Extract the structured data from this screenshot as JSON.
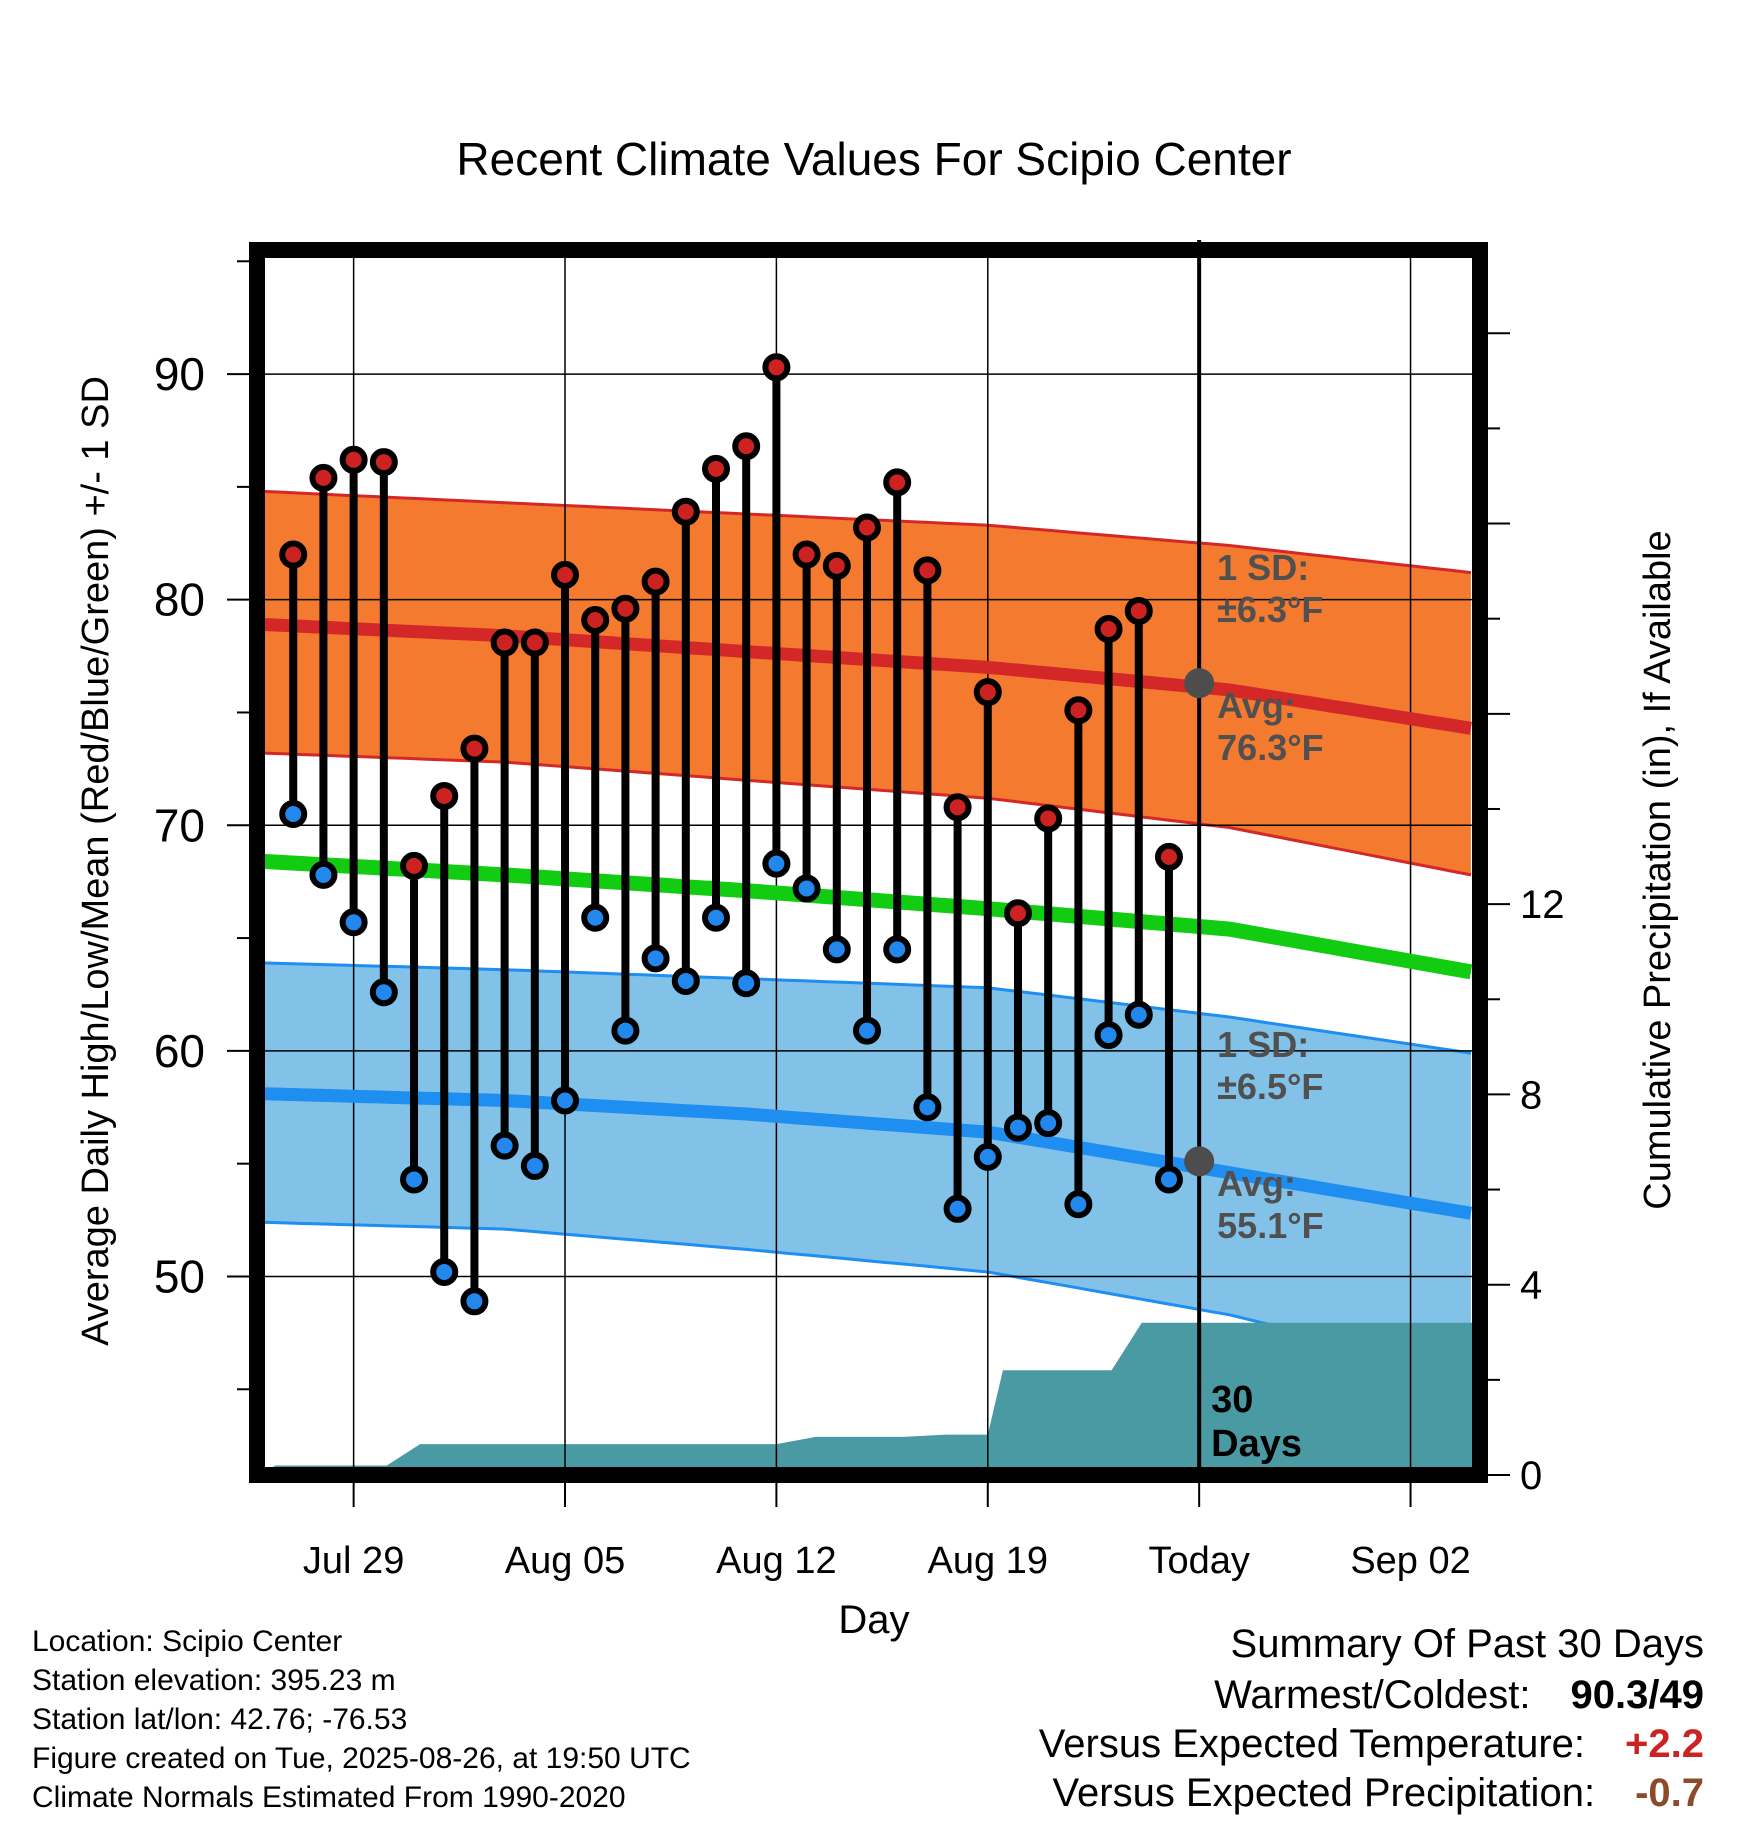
{
  "chart_data": {
    "type": "line",
    "title": "Recent Climate Values For Scipio Center",
    "xlabel": "Day",
    "ylabel_left": "Average Daily High/Low/Mean (Red/Blue/Green) +/- 1 SD",
    "ylabel_right": "Cumulative Precipitation (in), If Available",
    "x_tick_labels": [
      "Jul 29",
      "Aug 05",
      "Aug 12",
      "Aug 19",
      "Today",
      "Sep 02"
    ],
    "x_tick_days": [
      3,
      10,
      17,
      24,
      31,
      38
    ],
    "xlim_days": [
      -0.2,
      40.3
    ],
    "today_day": 31,
    "yticks_left": [
      50,
      60,
      70,
      80,
      90
    ],
    "ylim_left": [
      41.2,
      95.5
    ],
    "yticks_right": [
      0,
      4,
      8,
      12
    ],
    "ylim_right": [
      0,
      25.75
    ],
    "daily_obs": {
      "days": [
        1,
        2,
        3,
        4,
        5,
        6,
        7,
        8,
        9,
        10,
        11,
        12,
        13,
        14,
        15,
        16,
        17,
        18,
        19,
        20,
        21,
        22,
        23,
        24,
        25,
        26,
        27,
        28,
        29,
        30
      ],
      "high": [
        82.0,
        85.4,
        86.2,
        86.1,
        68.2,
        71.3,
        73.4,
        78.1,
        78.1,
        81.1,
        79.1,
        79.6,
        80.8,
        83.9,
        85.8,
        86.8,
        90.3,
        82.0,
        81.5,
        83.2,
        85.2,
        81.3,
        70.8,
        75.9,
        66.1,
        70.3,
        75.1,
        78.7,
        79.5,
        68.6
      ],
      "low": [
        70.5,
        67.8,
        65.7,
        62.6,
        54.3,
        50.2,
        48.9,
        55.8,
        54.9,
        57.8,
        65.9,
        60.9,
        64.1,
        63.1,
        65.9,
        63.0,
        68.3,
        67.2,
        64.5,
        60.9,
        64.5,
        57.5,
        53.0,
        55.3,
        56.6,
        56.8,
        53.2,
        60.7,
        61.6,
        54.3
      ]
    },
    "normals": {
      "days": [
        0,
        8,
        16,
        24,
        32,
        40
      ],
      "high_avg": [
        78.9,
        78.4,
        77.7,
        77.0,
        76.0,
        74.3
      ],
      "high_upper": [
        84.8,
        84.3,
        83.8,
        83.3,
        82.4,
        81.2
      ],
      "high_lower": [
        73.2,
        72.8,
        72.0,
        71.2,
        69.9,
        67.8
      ],
      "mean_avg": [
        68.4,
        67.8,
        67.1,
        66.3,
        65.4,
        63.5
      ],
      "low_avg": [
        58.1,
        57.8,
        57.2,
        56.4,
        54.6,
        52.8
      ],
      "low_upper": [
        63.9,
        63.6,
        63.2,
        62.8,
        61.5,
        59.9
      ],
      "low_lower": [
        52.4,
        52.1,
        51.2,
        50.2,
        48.3,
        45.7
      ]
    },
    "today_markers": {
      "high_avg": 76.3,
      "low_avg": 55.1
    },
    "precipitation": {
      "days": [
        0,
        0.4,
        1.2,
        4.1,
        5.2,
        17.0,
        18.3,
        21.2,
        22.6,
        24.0,
        24.5,
        28.1,
        29.1,
        40.3
      ],
      "cumulative": [
        0,
        0.2,
        0.2,
        0.2,
        0.65,
        0.65,
        0.8,
        0.8,
        0.85,
        0.85,
        2.2,
        2.2,
        3.2,
        3.2
      ]
    },
    "annotations": {
      "high_sd_label": "1 SD:",
      "high_sd_value": "±6.3°F",
      "high_avg_label": "Avg:",
      "high_avg_value": "76.3°F",
      "low_sd_label": "1 SD:",
      "low_sd_value": "±6.5°F",
      "low_avg_label": "Avg:",
      "low_avg_value": "55.1°F",
      "window_line1": "30",
      "window_line2": "Days"
    },
    "colors": {
      "high_band": "#f47a30",
      "high_line": "#d42828",
      "mean_line": "#11cc11",
      "low_band": "#82c2e8",
      "low_line": "#1e8ef0",
      "precip_fill": "#4a9aa4",
      "high_dot": "#cc2222",
      "low_dot": "#2288ee",
      "annotation_text": "#505050"
    }
  },
  "footer": {
    "location": "Location: Scipio Center",
    "elevation": "Station elevation: 395.23 m",
    "latlon": "Station lat/lon: 42.76; -76.53",
    "created": "Figure created on Tue, 2025-08-26, at 19:50 UTC",
    "normals": "Climate Normals Estimated From 1990-2020"
  },
  "summary": {
    "title": "Summary Of Past 30 Days",
    "warmest_label": "Warmest/Coldest:",
    "warmest_value": "90.3",
    "coldest_value": "/49",
    "temp_label": "Versus Expected Temperature:",
    "temp_value": "+2.2",
    "precip_label": "Versus Expected Precipitation:",
    "precip_value": "-0.7",
    "temp_color": "#cc2222",
    "precip_color": "#8b4a2a"
  }
}
